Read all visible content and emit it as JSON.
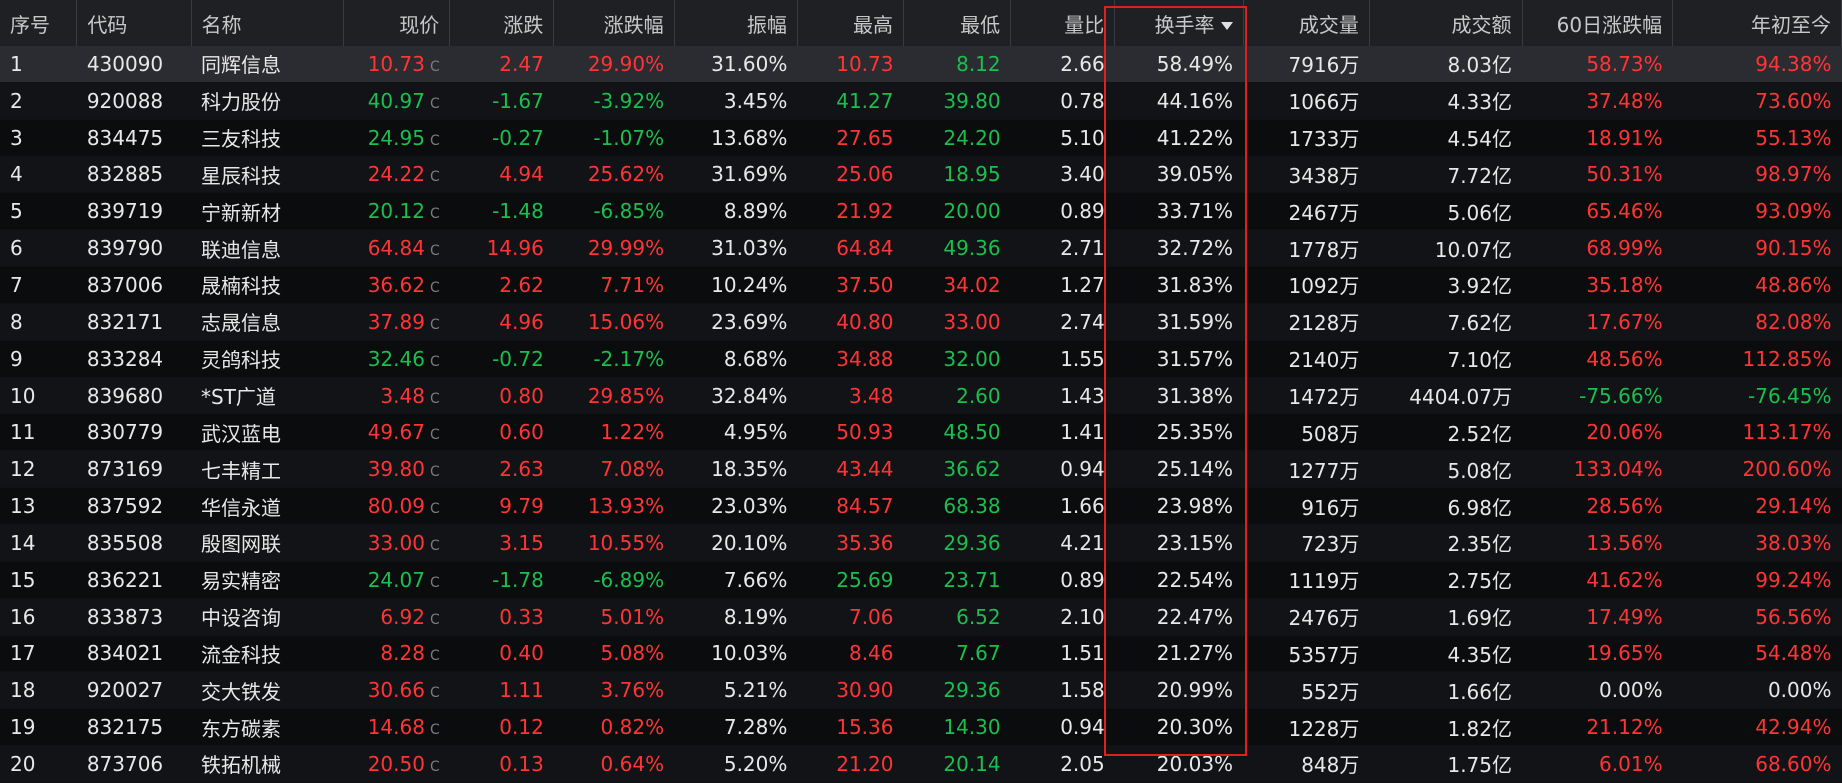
{
  "columns": [
    {
      "key": "seq",
      "label": "序号"
    },
    {
      "key": "code",
      "label": "代码"
    },
    {
      "key": "name",
      "label": "名称"
    },
    {
      "key": "price",
      "label": "现价"
    },
    {
      "key": "chg",
      "label": "涨跌"
    },
    {
      "key": "pct",
      "label": "涨跌幅"
    },
    {
      "key": "amp",
      "label": "振幅"
    },
    {
      "key": "high",
      "label": "最高"
    },
    {
      "key": "low",
      "label": "最低"
    },
    {
      "key": "vr",
      "label": "量比"
    },
    {
      "key": "turnover",
      "label": "换手率"
    },
    {
      "key": "vol",
      "label": "成交量"
    },
    {
      "key": "amount",
      "label": "成交额"
    },
    {
      "key": "d60",
      "label": "60日涨跌幅"
    },
    {
      "key": "ytd",
      "label": "年初至今"
    }
  ],
  "price_suffix": "C",
  "sorted_column": "turnover",
  "highlight_color": "#e02020",
  "colors": {
    "up": "#ff3535",
    "down": "#1bbf4e",
    "flat": "#e8e8e8"
  },
  "rows": [
    {
      "seq": "1",
      "code": "430090",
      "name": "同辉信息",
      "price": "10.73",
      "chg": "2.47",
      "pct": "29.90%",
      "amp": "31.60%",
      "high": "10.73",
      "low": "8.12",
      "vr": "2.66",
      "turnover": "58.49%",
      "vol": "7916万",
      "amount": "8.03亿",
      "d60": "58.73%",
      "ytd": "94.38%",
      "dir": "up",
      "low_dir": "dn",
      "d60_dir": "up",
      "ytd_dir": "up"
    },
    {
      "seq": "2",
      "code": "920088",
      "name": "科力股份",
      "price": "40.97",
      "chg": "-1.67",
      "pct": "-3.92%",
      "amp": "3.45%",
      "high": "41.27",
      "low": "39.80",
      "vr": "0.78",
      "turnover": "44.16%",
      "vol": "1066万",
      "amount": "4.33亿",
      "d60": "37.48%",
      "ytd": "73.60%",
      "dir": "dn",
      "high_dir": "dn",
      "low_dir": "dn",
      "d60_dir": "up",
      "ytd_dir": "up"
    },
    {
      "seq": "3",
      "code": "834475",
      "name": "三友科技",
      "price": "24.95",
      "chg": "-0.27",
      "pct": "-1.07%",
      "amp": "13.68%",
      "high": "27.65",
      "low": "24.20",
      "vr": "5.10",
      "turnover": "41.22%",
      "vol": "1733万",
      "amount": "4.54亿",
      "d60": "18.91%",
      "ytd": "55.13%",
      "dir": "dn",
      "high_dir": "up",
      "low_dir": "dn",
      "d60_dir": "up",
      "ytd_dir": "up"
    },
    {
      "seq": "4",
      "code": "832885",
      "name": "星辰科技",
      "price": "24.22",
      "chg": "4.94",
      "pct": "25.62%",
      "amp": "31.69%",
      "high": "25.06",
      "low": "18.95",
      "vr": "3.40",
      "turnover": "39.05%",
      "vol": "3438万",
      "amount": "7.72亿",
      "d60": "50.31%",
      "ytd": "98.97%",
      "dir": "up",
      "low_dir": "dn",
      "d60_dir": "up",
      "ytd_dir": "up"
    },
    {
      "seq": "5",
      "code": "839719",
      "name": "宁新新材",
      "price": "20.12",
      "chg": "-1.48",
      "pct": "-6.85%",
      "amp": "8.89%",
      "high": "21.92",
      "low": "20.00",
      "vr": "0.89",
      "turnover": "33.71%",
      "vol": "2467万",
      "amount": "5.06亿",
      "d60": "65.46%",
      "ytd": "93.09%",
      "dir": "dn",
      "high_dir": "up",
      "low_dir": "dn",
      "d60_dir": "up",
      "ytd_dir": "up"
    },
    {
      "seq": "6",
      "code": "839790",
      "name": "联迪信息",
      "price": "64.84",
      "chg": "14.96",
      "pct": "29.99%",
      "amp": "31.03%",
      "high": "64.84",
      "low": "49.36",
      "vr": "2.71",
      "turnover": "32.72%",
      "vol": "1778万",
      "amount": "10.07亿",
      "d60": "68.99%",
      "ytd": "90.15%",
      "dir": "up",
      "low_dir": "dn",
      "d60_dir": "up",
      "ytd_dir": "up"
    },
    {
      "seq": "7",
      "code": "837006",
      "name": "晟楠科技",
      "price": "36.62",
      "chg": "2.62",
      "pct": "7.71%",
      "amp": "10.24%",
      "high": "37.50",
      "low": "34.02",
      "vr": "1.27",
      "turnover": "31.83%",
      "vol": "1092万",
      "amount": "3.92亿",
      "d60": "35.18%",
      "ytd": "48.86%",
      "dir": "up",
      "low_dir": "up",
      "d60_dir": "up",
      "ytd_dir": "up"
    },
    {
      "seq": "8",
      "code": "832171",
      "name": "志晟信息",
      "price": "37.89",
      "chg": "4.96",
      "pct": "15.06%",
      "amp": "23.69%",
      "high": "40.80",
      "low": "33.00",
      "vr": "2.74",
      "turnover": "31.59%",
      "vol": "2128万",
      "amount": "7.62亿",
      "d60": "17.67%",
      "ytd": "82.08%",
      "dir": "up",
      "low_dir": "up",
      "d60_dir": "up",
      "ytd_dir": "up"
    },
    {
      "seq": "9",
      "code": "833284",
      "name": "灵鸽科技",
      "price": "32.46",
      "chg": "-0.72",
      "pct": "-2.17%",
      "amp": "8.68%",
      "high": "34.88",
      "low": "32.00",
      "vr": "1.55",
      "turnover": "31.57%",
      "vol": "2140万",
      "amount": "7.10亿",
      "d60": "48.56%",
      "ytd": "112.85%",
      "dir": "dn",
      "high_dir": "up",
      "low_dir": "dn",
      "d60_dir": "up",
      "ytd_dir": "up"
    },
    {
      "seq": "10",
      "code": "839680",
      "name": "*ST广道",
      "price": "3.48",
      "chg": "0.80",
      "pct": "29.85%",
      "amp": "32.84%",
      "high": "3.48",
      "low": "2.60",
      "vr": "1.43",
      "turnover": "31.38%",
      "vol": "1472万",
      "amount": "4404.07万",
      "d60": "-75.66%",
      "ytd": "-76.45%",
      "dir": "up",
      "low_dir": "dn",
      "d60_dir": "dn",
      "ytd_dir": "dn"
    },
    {
      "seq": "11",
      "code": "830779",
      "name": "武汉蓝电",
      "price": "49.67",
      "chg": "0.60",
      "pct": "1.22%",
      "amp": "4.95%",
      "high": "50.93",
      "low": "48.50",
      "vr": "1.41",
      "turnover": "25.35%",
      "vol": "508万",
      "amount": "2.52亿",
      "d60": "20.06%",
      "ytd": "113.17%",
      "dir": "up",
      "low_dir": "dn",
      "d60_dir": "up",
      "ytd_dir": "up"
    },
    {
      "seq": "12",
      "code": "873169",
      "name": "七丰精工",
      "price": "39.80",
      "chg": "2.63",
      "pct": "7.08%",
      "amp": "18.35%",
      "high": "43.44",
      "low": "36.62",
      "vr": "0.94",
      "turnover": "25.14%",
      "vol": "1277万",
      "amount": "5.08亿",
      "d60": "133.04%",
      "ytd": "200.60%",
      "dir": "up",
      "low_dir": "dn",
      "d60_dir": "up",
      "ytd_dir": "up"
    },
    {
      "seq": "13",
      "code": "837592",
      "name": "华信永道",
      "price": "80.09",
      "chg": "9.79",
      "pct": "13.93%",
      "amp": "23.03%",
      "high": "84.57",
      "low": "68.38",
      "vr": "1.66",
      "turnover": "23.98%",
      "vol": "916万",
      "amount": "6.98亿",
      "d60": "28.56%",
      "ytd": "29.14%",
      "dir": "up",
      "low_dir": "dn",
      "d60_dir": "up",
      "ytd_dir": "up"
    },
    {
      "seq": "14",
      "code": "835508",
      "name": "殷图网联",
      "price": "33.00",
      "chg": "3.15",
      "pct": "10.55%",
      "amp": "20.10%",
      "high": "35.36",
      "low": "29.36",
      "vr": "4.21",
      "turnover": "23.15%",
      "vol": "723万",
      "amount": "2.35亿",
      "d60": "13.56%",
      "ytd": "38.03%",
      "dir": "up",
      "low_dir": "dn",
      "d60_dir": "up",
      "ytd_dir": "up"
    },
    {
      "seq": "15",
      "code": "836221",
      "name": "易实精密",
      "price": "24.07",
      "chg": "-1.78",
      "pct": "-6.89%",
      "amp": "7.66%",
      "high": "25.69",
      "low": "23.71",
      "vr": "0.89",
      "turnover": "22.54%",
      "vol": "1119万",
      "amount": "2.75亿",
      "d60": "41.62%",
      "ytd": "99.24%",
      "dir": "dn",
      "high_dir": "dn",
      "low_dir": "dn",
      "d60_dir": "up",
      "ytd_dir": "up"
    },
    {
      "seq": "16",
      "code": "833873",
      "name": "中设咨询",
      "price": "6.92",
      "chg": "0.33",
      "pct": "5.01%",
      "amp": "8.19%",
      "high": "7.06",
      "low": "6.52",
      "vr": "2.10",
      "turnover": "22.47%",
      "vol": "2476万",
      "amount": "1.69亿",
      "d60": "17.49%",
      "ytd": "56.56%",
      "dir": "up",
      "low_dir": "dn",
      "d60_dir": "up",
      "ytd_dir": "up"
    },
    {
      "seq": "17",
      "code": "834021",
      "name": "流金科技",
      "price": "8.28",
      "chg": "0.40",
      "pct": "5.08%",
      "amp": "10.03%",
      "high": "8.46",
      "low": "7.67",
      "vr": "1.51",
      "turnover": "21.27%",
      "vol": "5357万",
      "amount": "4.35亿",
      "d60": "19.65%",
      "ytd": "54.48%",
      "dir": "up",
      "low_dir": "dn",
      "d60_dir": "up",
      "ytd_dir": "up"
    },
    {
      "seq": "18",
      "code": "920027",
      "name": "交大铁发",
      "price": "30.66",
      "chg": "1.11",
      "pct": "3.76%",
      "amp": "5.21%",
      "high": "30.90",
      "low": "29.36",
      "vr": "1.58",
      "turnover": "20.99%",
      "vol": "552万",
      "amount": "1.66亿",
      "d60": "0.00%",
      "ytd": "0.00%",
      "dir": "up",
      "low_dir": "dn",
      "d60_dir": "w",
      "ytd_dir": "w"
    },
    {
      "seq": "19",
      "code": "832175",
      "name": "东方碳素",
      "price": "14.68",
      "chg": "0.12",
      "pct": "0.82%",
      "amp": "7.28%",
      "high": "15.36",
      "low": "14.30",
      "vr": "0.94",
      "turnover": "20.30%",
      "vol": "1228万",
      "amount": "1.82亿",
      "d60": "21.12%",
      "ytd": "42.94%",
      "dir": "up",
      "low_dir": "dn",
      "d60_dir": "up",
      "ytd_dir": "up"
    },
    {
      "seq": "20",
      "code": "873706",
      "name": "铁拓机械",
      "price": "20.50",
      "chg": "0.13",
      "pct": "0.64%",
      "amp": "5.20%",
      "high": "21.20",
      "low": "20.14",
      "vr": "2.05",
      "turnover": "20.03%",
      "vol": "848万",
      "amount": "1.75亿",
      "d60": "6.01%",
      "ytd": "68.60%",
      "dir": "up",
      "low_dir": "dn",
      "d60_dir": "up",
      "ytd_dir": "up"
    }
  ]
}
